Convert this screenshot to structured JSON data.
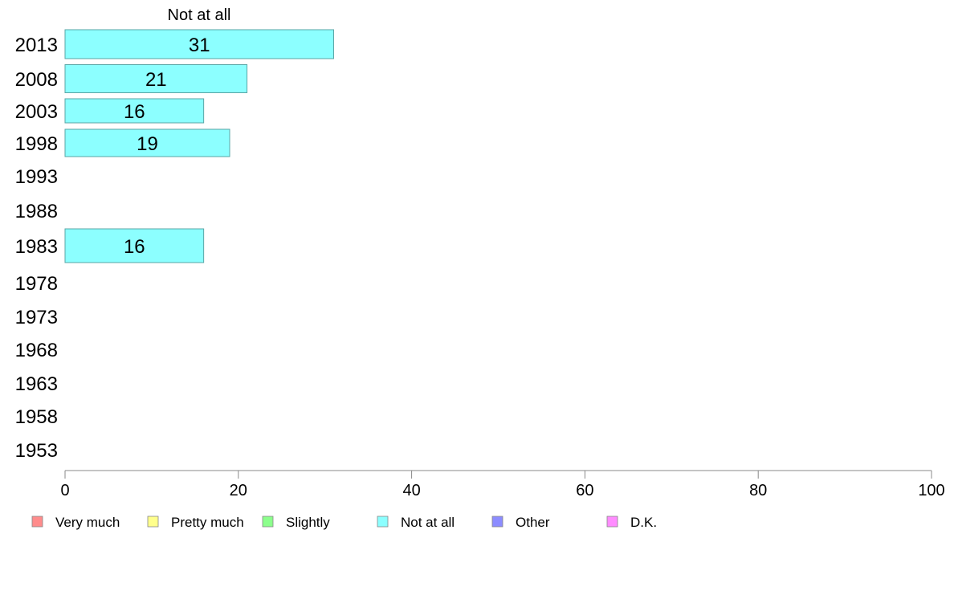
{
  "chart_data": {
    "type": "bar",
    "orientation": "horizontal",
    "title": "Not at all",
    "categories": [
      "2013",
      "2008",
      "2003",
      "1998",
      "1993",
      "1988",
      "1983",
      "1978",
      "1973",
      "1968",
      "1963",
      "1958",
      "1953"
    ],
    "series": [
      {
        "name": "Not at all",
        "values": [
          31,
          21,
          16,
          19,
          null,
          null,
          16,
          null,
          null,
          null,
          null,
          null,
          null
        ]
      }
    ],
    "data_labels": [
      "31",
      "21",
      "16",
      "19",
      "",
      "",
      "16",
      "",
      "",
      "",
      "",
      "",
      ""
    ],
    "xlim": [
      0,
      100
    ],
    "xticks": [
      0,
      20,
      40,
      60,
      80,
      100
    ],
    "xlabel": "",
    "ylabel": "",
    "grid": false,
    "legend_position": "bottom",
    "legend": [
      {
        "label": "Very much",
        "color": "#ff8c8c"
      },
      {
        "label": "Pretty much",
        "color": "#ffff8c"
      },
      {
        "label": "Slightly",
        "color": "#8cff8c"
      },
      {
        "label": "Not at all",
        "color": "#8cffff"
      },
      {
        "label": "Other",
        "color": "#8c8cff"
      },
      {
        "label": "D.K.",
        "color": "#ff8cff"
      }
    ],
    "bar_color": "#8cffff",
    "bar_stroke": "#5aa6a6",
    "axis_color": "#888888"
  }
}
